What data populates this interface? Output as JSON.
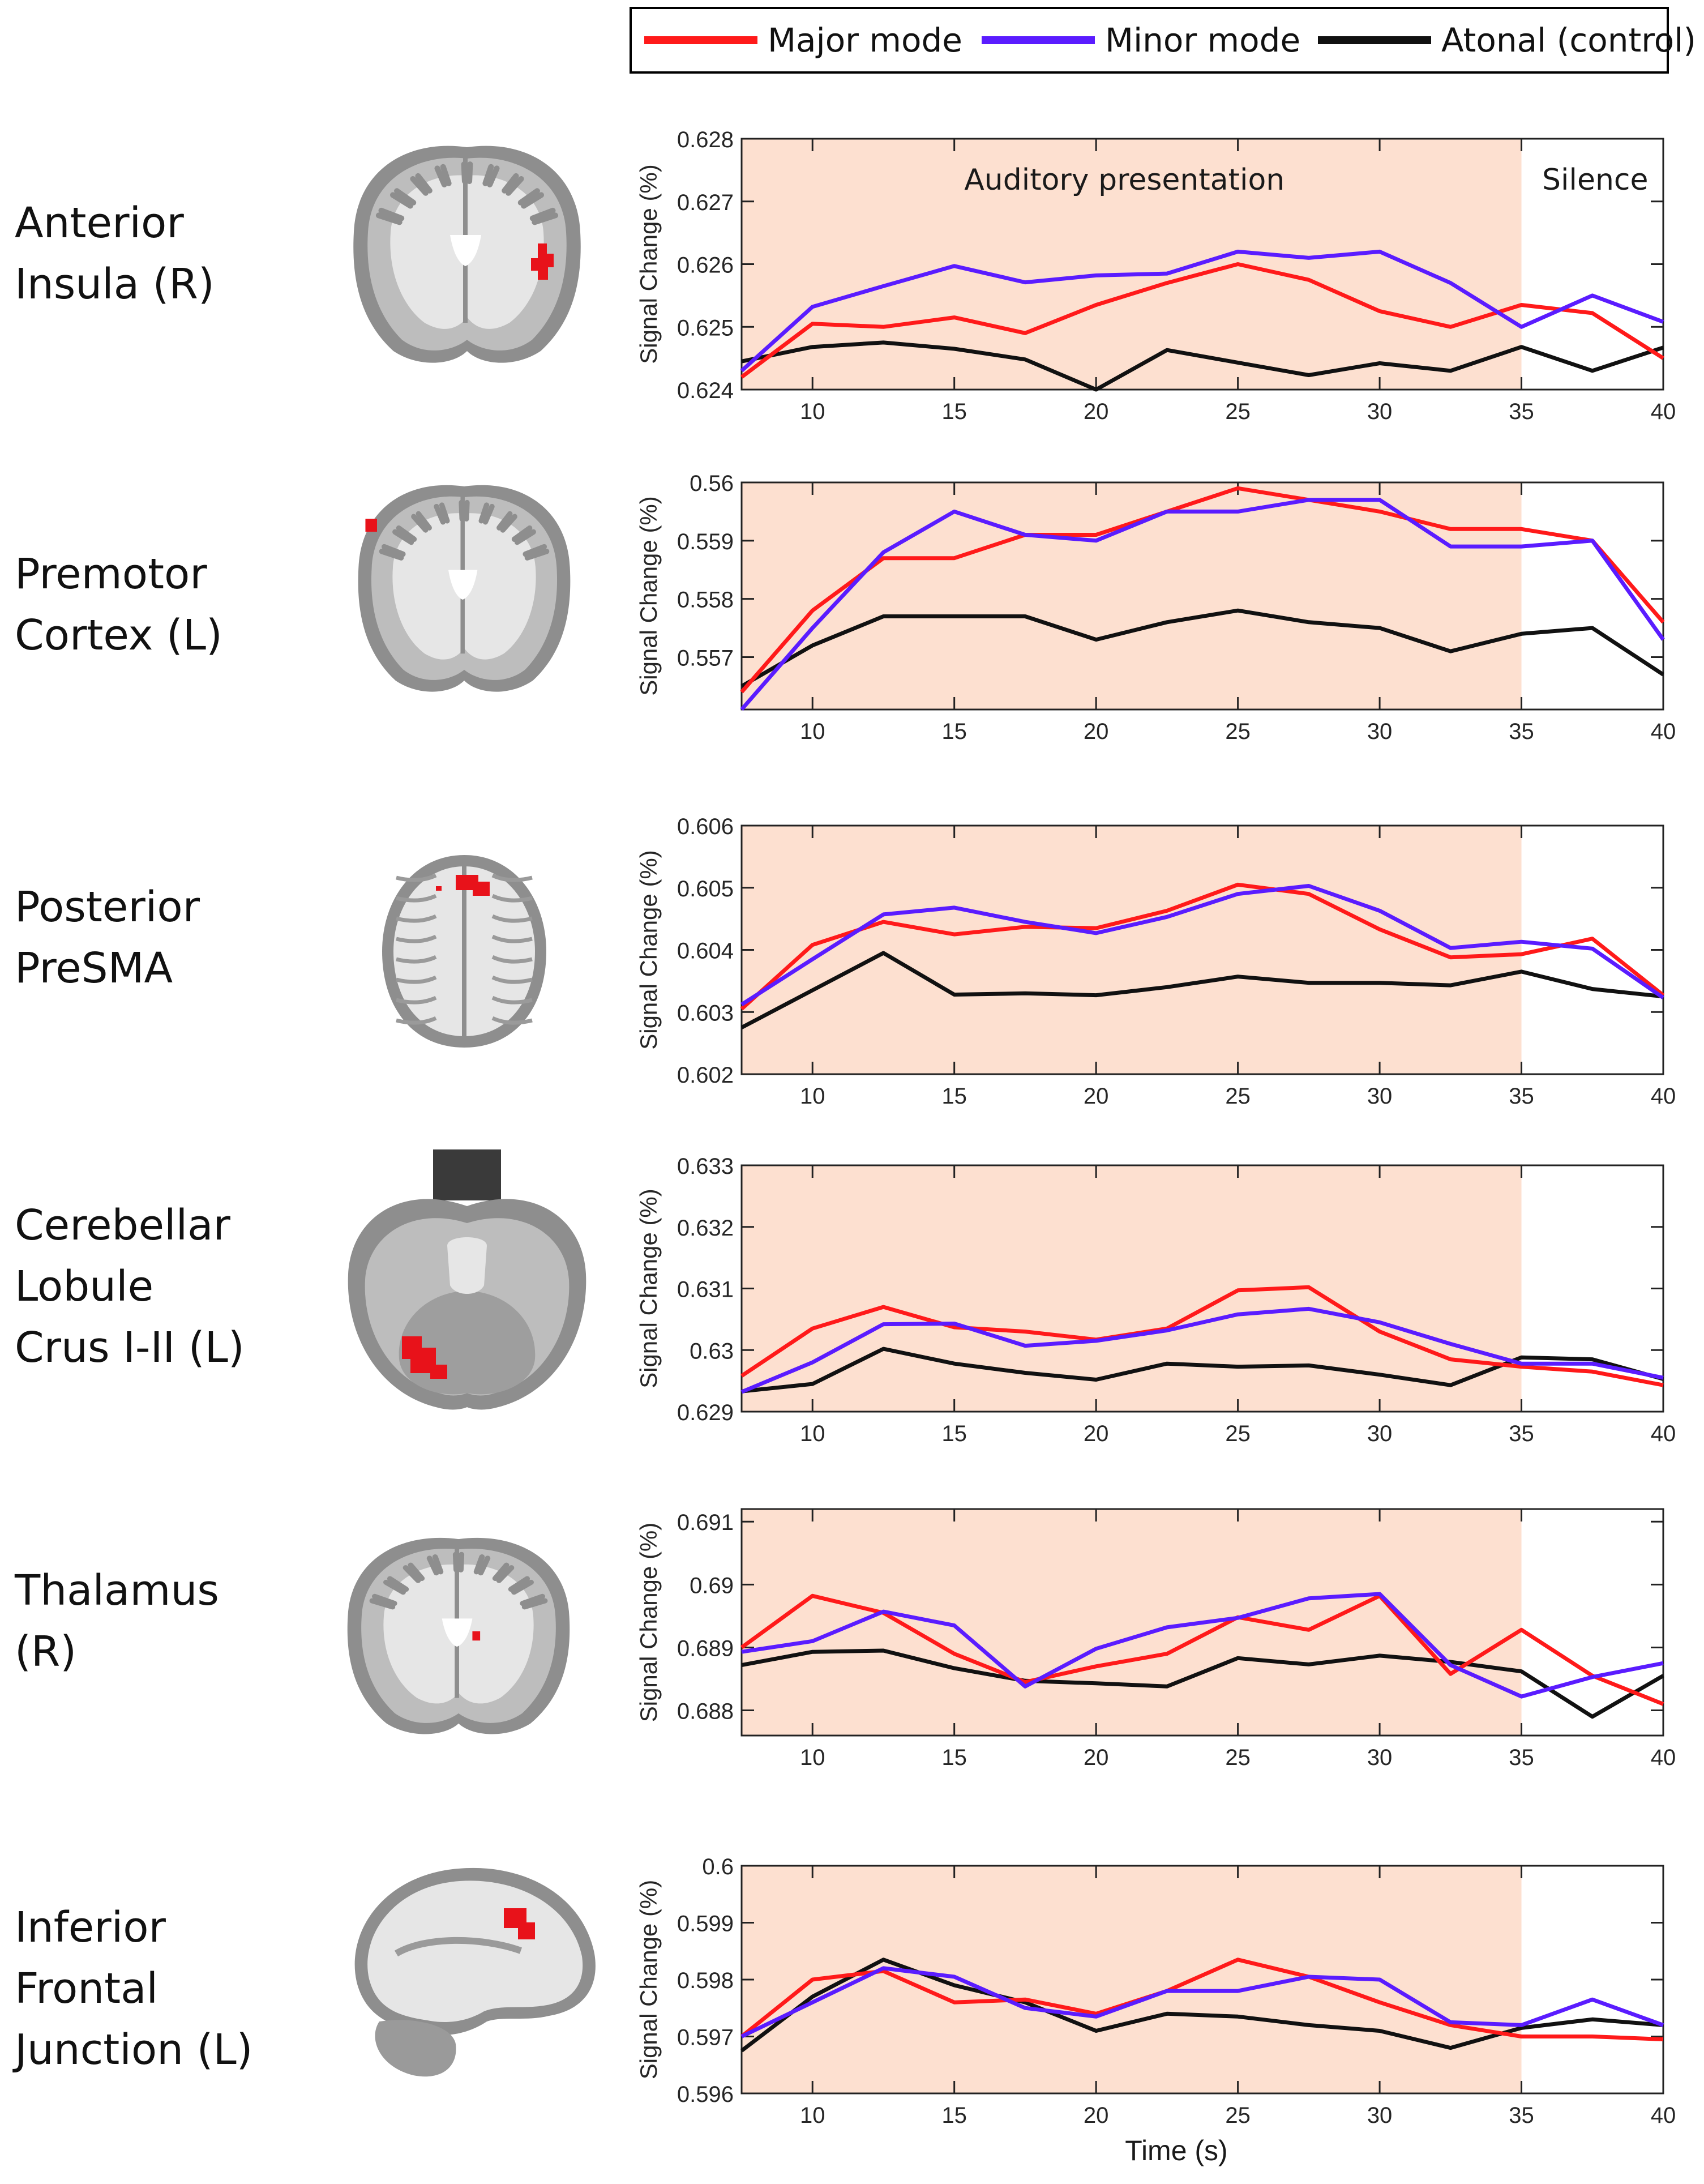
{
  "legend": {
    "items": [
      {
        "label": "Major mode",
        "color": "#ff1a1a"
      },
      {
        "label": "Minor mode",
        "color": "#5a1cff"
      },
      {
        "label": "Atonal (control)",
        "color": "#111111"
      }
    ]
  },
  "shading_color": "#fde0d0",
  "annotations": {
    "stimulus": "Auditory presentation",
    "silence": "Silence"
  },
  "chart_data": [
    {
      "type": "line",
      "region_lines": [
        "Anterior",
        "Insula (R)"
      ],
      "ylabel": "Signal Change (%)",
      "xlabel": "",
      "xlim": [
        7.5,
        40
      ],
      "ylim": [
        0.624,
        0.628
      ],
      "x_ticks": [
        "10",
        "15",
        "20",
        "25",
        "30",
        "35",
        "40"
      ],
      "y_ticks": [
        "0.624",
        "0.625",
        "0.626",
        "0.627",
        "0.628"
      ],
      "shaded_x": [
        7.5,
        35
      ],
      "x": [
        7.5,
        10,
        12.5,
        15,
        17.5,
        20,
        22.5,
        25,
        27.5,
        30,
        32.5,
        35,
        37.5,
        40
      ],
      "series": [
        {
          "name": "Major mode",
          "values": [
            0.6242,
            0.62505,
            0.625,
            0.62515,
            0.6249,
            0.62535,
            0.6257,
            0.626,
            0.62575,
            0.62525,
            0.625,
            0.62535,
            0.62522,
            0.6245
          ]
        },
        {
          "name": "Minor mode",
          "values": [
            0.6243,
            0.62532,
            0.62565,
            0.62597,
            0.62571,
            0.62582,
            0.62585,
            0.6262,
            0.6261,
            0.6262,
            0.6257,
            0.625,
            0.6255,
            0.62508
          ]
        },
        {
          "name": "Atonal (control)",
          "values": [
            0.62445,
            0.62468,
            0.62475,
            0.62465,
            0.62448,
            0.624,
            0.62463,
            0.62443,
            0.62423,
            0.62442,
            0.6243,
            0.62468,
            0.6243,
            0.62467
          ]
        }
      ],
      "brain": "coronal"
    },
    {
      "type": "line",
      "region_lines": [
        "Premotor",
        "Cortex (L)"
      ],
      "ylabel": "Signal Change (%)",
      "xlabel": "",
      "xlim": [
        7.5,
        40
      ],
      "ylim": [
        0.5561,
        0.56
      ],
      "x_ticks": [
        "10",
        "15",
        "20",
        "25",
        "30",
        "35",
        "40"
      ],
      "y_ticks": [
        "0.557",
        "0.558",
        "0.559",
        "0.56"
      ],
      "shaded_x": [
        7.5,
        35
      ],
      "x": [
        7.5,
        10,
        12.5,
        15,
        17.5,
        20,
        22.5,
        25,
        27.5,
        30,
        32.5,
        35,
        37.5,
        40
      ],
      "series": [
        {
          "name": "Major mode",
          "values": [
            0.5564,
            0.5578,
            0.5587,
            0.5587,
            0.5591,
            0.5591,
            0.5595,
            0.5599,
            0.5597,
            0.5595,
            0.5592,
            0.5592,
            0.559,
            0.5576
          ]
        },
        {
          "name": "Minor mode",
          "values": [
            0.5561,
            0.5575,
            0.5588,
            0.5595,
            0.5591,
            0.559,
            0.5595,
            0.5595,
            0.5597,
            0.5597,
            0.5589,
            0.5589,
            0.559,
            0.5573
          ]
        },
        {
          "name": "Atonal (control)",
          "values": [
            0.5565,
            0.5572,
            0.5577,
            0.5577,
            0.5577,
            0.5573,
            0.5576,
            0.5578,
            0.5576,
            0.5575,
            0.5571,
            0.5574,
            0.5575,
            0.5567
          ]
        }
      ],
      "brain": "coronal2"
    },
    {
      "type": "line",
      "region_lines": [
        "Posterior",
        "PreSMA"
      ],
      "ylabel": "Signal Change (%)",
      "xlabel": "",
      "xlim": [
        7.5,
        40
      ],
      "ylim": [
        0.602,
        0.606
      ],
      "x_ticks": [
        "10",
        "15",
        "20",
        "25",
        "30",
        "35",
        "40"
      ],
      "y_ticks": [
        "0.602",
        "0.603",
        "0.604",
        "0.605",
        "0.606"
      ],
      "shaded_x": [
        7.5,
        35
      ],
      "x": [
        7.5,
        10,
        12.5,
        15,
        17.5,
        20,
        22.5,
        25,
        27.5,
        30,
        32.5,
        35,
        37.5,
        40
      ],
      "series": [
        {
          "name": "Major mode",
          "values": [
            0.60305,
            0.60408,
            0.60445,
            0.60425,
            0.60437,
            0.60435,
            0.60463,
            0.60505,
            0.6049,
            0.60433,
            0.60388,
            0.60393,
            0.60418,
            0.60327
          ]
        },
        {
          "name": "Minor mode",
          "values": [
            0.60312,
            0.60385,
            0.60457,
            0.60468,
            0.60445,
            0.60427,
            0.60453,
            0.6049,
            0.60503,
            0.60463,
            0.60403,
            0.60413,
            0.60402,
            0.60323
          ]
        },
        {
          "name": "Atonal (control)",
          "values": [
            0.60275,
            0.60335,
            0.60395,
            0.60328,
            0.6033,
            0.60327,
            0.6034,
            0.60357,
            0.60347,
            0.60347,
            0.60343,
            0.60365,
            0.60337,
            0.60325
          ]
        }
      ],
      "brain": "axial"
    },
    {
      "type": "line",
      "region_lines": [
        "Cerebellar",
        "Lobule",
        "Crus I-II (L)"
      ],
      "ylabel": "Signal Change (%)",
      "xlabel": "",
      "xlim": [
        7.5,
        40
      ],
      "ylim": [
        0.629,
        0.633
      ],
      "x_ticks": [
        "10",
        "15",
        "20",
        "25",
        "30",
        "35",
        "40"
      ],
      "y_ticks": [
        "0.629",
        "0.63",
        "0.631",
        "0.632",
        "0.633"
      ],
      "shaded_x": [
        7.5,
        35
      ],
      "x": [
        7.5,
        10,
        12.5,
        15,
        17.5,
        20,
        22.5,
        25,
        27.5,
        30,
        32.5,
        35,
        37.5,
        40
      ],
      "series": [
        {
          "name": "Major mode",
          "values": [
            0.62958,
            0.63035,
            0.6307,
            0.63037,
            0.6303,
            0.63017,
            0.63035,
            0.63097,
            0.63102,
            0.6303,
            0.62985,
            0.62973,
            0.62965,
            0.62943
          ]
        },
        {
          "name": "Minor mode",
          "values": [
            0.62932,
            0.6298,
            0.63042,
            0.63043,
            0.63007,
            0.63015,
            0.63032,
            0.63058,
            0.63067,
            0.63045,
            0.6301,
            0.62978,
            0.62978,
            0.62955
          ]
        },
        {
          "name": "Atonal (control)",
          "values": [
            0.62933,
            0.62945,
            0.63002,
            0.62978,
            0.62963,
            0.62952,
            0.62978,
            0.62973,
            0.62975,
            0.6296,
            0.62943,
            0.62988,
            0.62985,
            0.62953
          ]
        }
      ],
      "brain": "axial2"
    },
    {
      "type": "line",
      "region_lines": [
        "Thalamus",
        "(R)"
      ],
      "ylabel": "Signal Change (%)",
      "xlabel": "",
      "xlim": [
        7.5,
        40
      ],
      "ylim": [
        0.6876,
        0.6912
      ],
      "x_ticks": [
        "10",
        "15",
        "20",
        "25",
        "30",
        "35",
        "40"
      ],
      "y_ticks": [
        "0.688",
        "0.689",
        "0.69",
        "0.691"
      ],
      "shaded_x": [
        7.5,
        35
      ],
      "x": [
        7.5,
        10,
        12.5,
        15,
        17.5,
        20,
        22.5,
        25,
        27.5,
        30,
        32.5,
        35,
        37.5,
        40
      ],
      "series": [
        {
          "name": "Major mode",
          "values": [
            0.689,
            0.68982,
            0.68955,
            0.6889,
            0.68845,
            0.6887,
            0.6889,
            0.68948,
            0.68928,
            0.68982,
            0.68858,
            0.68928,
            0.68855,
            0.6881
          ]
        },
        {
          "name": "Minor mode",
          "values": [
            0.68893,
            0.6891,
            0.68957,
            0.68935,
            0.68838,
            0.68898,
            0.68932,
            0.68947,
            0.68978,
            0.68985,
            0.68872,
            0.68822,
            0.68853,
            0.68875
          ]
        },
        {
          "name": "Atonal (control)",
          "values": [
            0.68872,
            0.68893,
            0.68895,
            0.68867,
            0.68847,
            0.68843,
            0.68838,
            0.68883,
            0.68873,
            0.68887,
            0.68877,
            0.68862,
            0.6879,
            0.68855
          ]
        }
      ],
      "brain": "coronal3"
    },
    {
      "type": "line",
      "region_lines": [
        "Inferior",
        "Frontal",
        "Junction (L)"
      ],
      "ylabel": "Signal Change (%)",
      "xlabel": "Time (s)",
      "xlim": [
        7.5,
        40
      ],
      "ylim": [
        0.596,
        0.6
      ],
      "x_ticks": [
        "10",
        "15",
        "20",
        "25",
        "30",
        "35",
        "40"
      ],
      "y_ticks": [
        "0.596",
        "0.597",
        "0.598",
        "0.599",
        "0.6"
      ],
      "shaded_x": [
        7.5,
        35
      ],
      "x": [
        7.5,
        10,
        12.5,
        15,
        17.5,
        20,
        22.5,
        25,
        27.5,
        30,
        32.5,
        35,
        37.5,
        40
      ],
      "series": [
        {
          "name": "Major mode",
          "values": [
            0.597,
            0.598,
            0.59815,
            0.5976,
            0.59765,
            0.5974,
            0.5978,
            0.59835,
            0.59805,
            0.5976,
            0.5972,
            0.597,
            0.597,
            0.59695
          ]
        },
        {
          "name": "Minor mode",
          "values": [
            0.597,
            0.5976,
            0.5982,
            0.59805,
            0.5975,
            0.59735,
            0.5978,
            0.5978,
            0.59805,
            0.598,
            0.59725,
            0.5972,
            0.59765,
            0.5972
          ]
        },
        {
          "name": "Atonal (control)",
          "values": [
            0.59675,
            0.5977,
            0.59835,
            0.5979,
            0.5976,
            0.5971,
            0.5974,
            0.59735,
            0.5972,
            0.5971,
            0.5968,
            0.59715,
            0.5973,
            0.5972
          ]
        }
      ],
      "brain": "sagittal"
    }
  ]
}
